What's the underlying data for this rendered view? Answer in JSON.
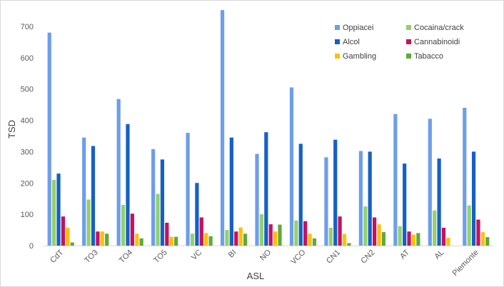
{
  "chart_data": {
    "type": "bar",
    "xlabel": "ASL",
    "ylabel": "TSD",
    "ylim": [
      0,
      750
    ],
    "yticks": [
      0,
      100,
      200,
      300,
      400,
      500,
      600,
      700
    ],
    "grid": false,
    "legend_position": "top-right",
    "categories": [
      "CdT",
      "TO3",
      "TO4",
      "TO5",
      "VC",
      "BI",
      "NO",
      "VCO",
      "CN1",
      "CN2",
      "AT",
      "AL",
      "Piemonte"
    ],
    "series": [
      {
        "name": "Oppiacei",
        "color": "#6d9eeb",
        "values": [
          680,
          345,
          468,
          308,
          360,
          752,
          293,
          505,
          282,
          302,
          420,
          405,
          440
        ]
      },
      {
        "name": "Cocaina/crack",
        "color": "#93d16a",
        "values": [
          210,
          147,
          130,
          165,
          38,
          50,
          100,
          80,
          57,
          125,
          62,
          112,
          128
        ]
      },
      {
        "name": "Alcol",
        "color": "#1460c7",
        "values": [
          230,
          318,
          388,
          275,
          200,
          345,
          362,
          325,
          338,
          300,
          262,
          278,
          300
        ]
      },
      {
        "name": "Cannabinoidi",
        "color": "#c8105d",
        "values": [
          93,
          45,
          102,
          73,
          90,
          45,
          68,
          78,
          93,
          90,
          45,
          57,
          83
        ]
      },
      {
        "name": "Gambling",
        "color": "#ffc000",
        "values": [
          57,
          45,
          38,
          28,
          40,
          58,
          45,
          38,
          37,
          68,
          35,
          25,
          43
        ]
      },
      {
        "name": "Tabacco",
        "color": "#5faa3a",
        "values": [
          10,
          38,
          23,
          28,
          30,
          38,
          67,
          23,
          8,
          43,
          40,
          0,
          27
        ]
      }
    ]
  }
}
